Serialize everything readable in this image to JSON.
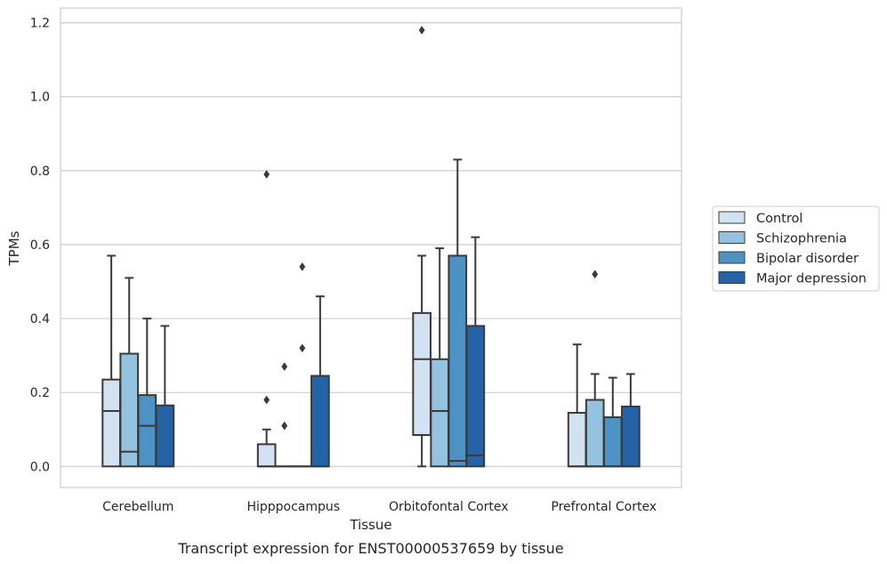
{
  "caption": "Transcript expression for ENST00000537659 by tissue",
  "colors": {
    "Control": "#d2e2f0",
    "Schizophrenia": "#94c3df",
    "Bipolar disorder": "#4d92c4",
    "Major depression": "#2464a6",
    "box_edge": "#3a3a3a",
    "grid": "#cccccc",
    "frame": "#cccccc"
  },
  "chart_data": {
    "type": "box",
    "xlabel": "Tissue",
    "ylabel": "TPMs",
    "ylim": [
      -0.057,
      1.24
    ],
    "yticks": [
      0.0,
      0.2,
      0.4,
      0.6,
      0.8,
      1.0,
      1.2
    ],
    "ytick_labels": [
      "0.0",
      "0.2",
      "0.4",
      "0.6",
      "0.8",
      "1.0",
      "1.2"
    ],
    "grid": "horizontal",
    "legend_position": "right",
    "categories": [
      "Cerebellum",
      "Hipppocampus",
      "Orbitofontal Cortex",
      "Prefrontal Cortex"
    ],
    "series": [
      {
        "name": "Control",
        "boxes": [
          {
            "whislo": 0.0,
            "q1": 0.0,
            "med": 0.15,
            "q3": 0.235,
            "whishi": 0.57,
            "fliers": []
          },
          {
            "whislo": 0.0,
            "q1": 0.0,
            "med": 0.0,
            "q3": 0.06,
            "whishi": 0.1,
            "fliers": [
              0.18,
              0.79
            ]
          },
          {
            "whislo": 0.0,
            "q1": 0.085,
            "med": 0.29,
            "q3": 0.415,
            "whishi": 0.57,
            "fliers": [
              1.18
            ]
          },
          {
            "whislo": 0.0,
            "q1": 0.0,
            "med": 0.0,
            "q3": 0.145,
            "whishi": 0.33,
            "fliers": []
          }
        ]
      },
      {
        "name": "Schizophrenia",
        "boxes": [
          {
            "whislo": 0.0,
            "q1": 0.0,
            "med": 0.04,
            "q3": 0.305,
            "whishi": 0.51,
            "fliers": []
          },
          {
            "whislo": 0.0,
            "q1": 0.0,
            "med": 0.0,
            "q3": 0.0,
            "whishi": 0.0,
            "fliers": [
              0.11,
              0.27
            ]
          },
          {
            "whislo": 0.0,
            "q1": 0.0,
            "med": 0.15,
            "q3": 0.29,
            "whishi": 0.59,
            "fliers": []
          },
          {
            "whislo": 0.0,
            "q1": 0.0,
            "med": 0.0,
            "q3": 0.18,
            "whishi": 0.25,
            "fliers": [
              0.52
            ]
          }
        ]
      },
      {
        "name": "Bipolar disorder",
        "boxes": [
          {
            "whislo": 0.0,
            "q1": 0.0,
            "med": 0.11,
            "q3": 0.193,
            "whishi": 0.4,
            "fliers": []
          },
          {
            "whislo": 0.0,
            "q1": 0.0,
            "med": 0.0,
            "q3": 0.0,
            "whishi": 0.0,
            "fliers": [
              0.32,
              0.54
            ]
          },
          {
            "whislo": 0.0,
            "q1": 0.0,
            "med": 0.015,
            "q3": 0.57,
            "whishi": 0.83,
            "fliers": []
          },
          {
            "whislo": 0.0,
            "q1": 0.0,
            "med": 0.0,
            "q3": 0.133,
            "whishi": 0.24,
            "fliers": []
          }
        ]
      },
      {
        "name": "Major depression",
        "boxes": [
          {
            "whislo": 0.0,
            "q1": 0.0,
            "med": 0.0,
            "q3": 0.165,
            "whishi": 0.38,
            "fliers": []
          },
          {
            "whislo": 0.0,
            "q1": 0.0,
            "med": 0.0,
            "q3": 0.245,
            "whishi": 0.46,
            "fliers": []
          },
          {
            "whislo": 0.0,
            "q1": 0.0,
            "med": 0.03,
            "q3": 0.38,
            "whishi": 0.62,
            "fliers": []
          },
          {
            "whislo": 0.0,
            "q1": 0.0,
            "med": 0.0,
            "q3": 0.162,
            "whishi": 0.25,
            "fliers": []
          }
        ]
      }
    ]
  }
}
